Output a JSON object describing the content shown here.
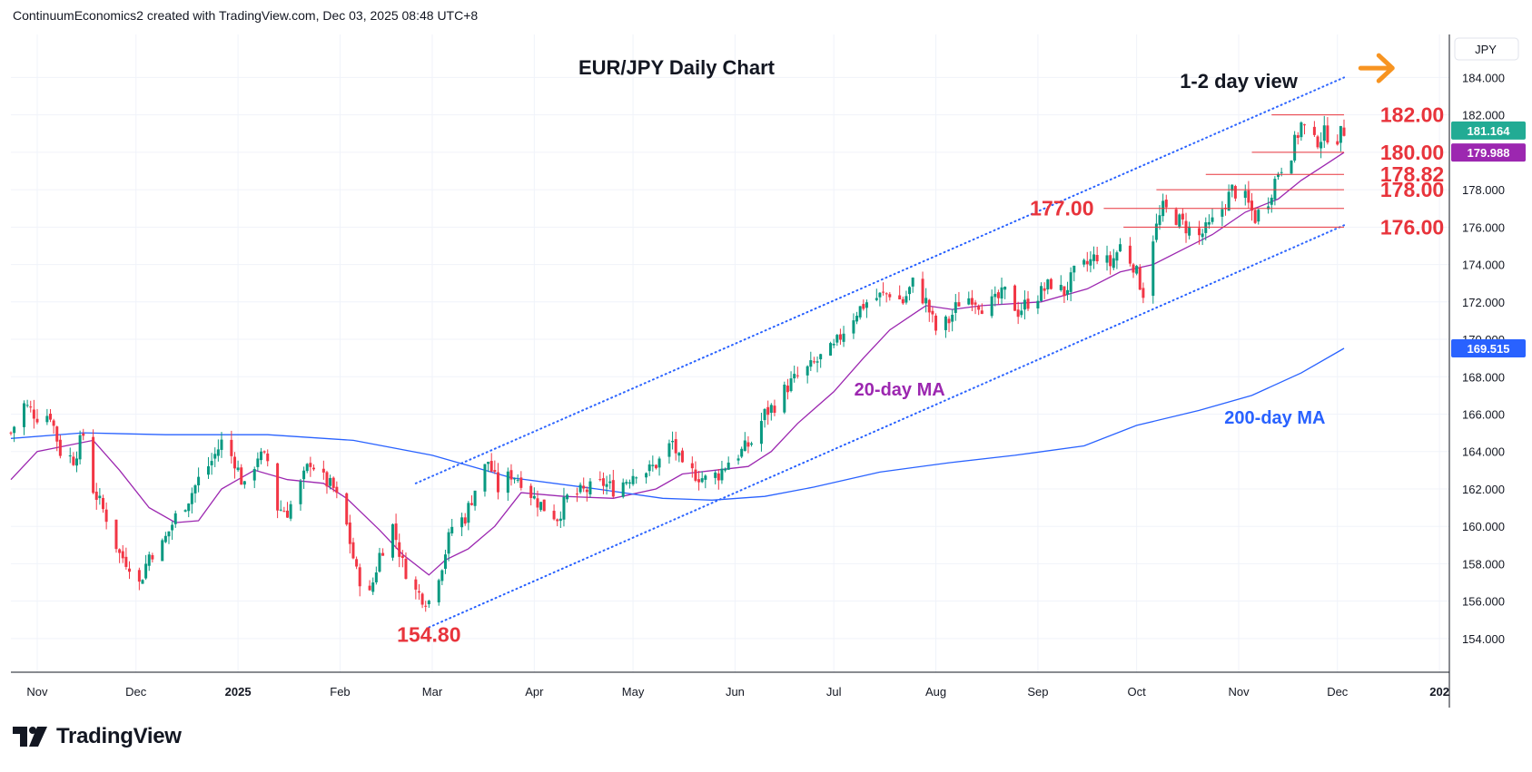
{
  "header": {
    "text": "ContinuumEconomics2 created with TradingView.com, Dec 03, 2025 08:48 UTC+8"
  },
  "branding": {
    "name": "TradingView",
    "icon": "tradingview-logo-icon"
  },
  "chart_data": {
    "type": "candlestick",
    "title": "EUR/JPY Daily Chart",
    "currency_label": "JPY",
    "y_ticks": [
      154,
      156,
      158,
      160,
      162,
      164,
      166,
      168,
      170,
      172,
      174,
      176,
      178,
      180,
      182,
      184
    ],
    "y_tick_labels": [
      "154.000",
      "156.000",
      "158.000",
      "160.000",
      "162.000",
      "164.000",
      "166.000",
      "168.000",
      "170.000",
      "172.000",
      "174.000",
      "176.000",
      "178.000",
      "180.000",
      "182.000",
      "184.000"
    ],
    "ylim": [
      152.2,
      186.3
    ],
    "x_range": [
      "2024-10-24",
      "2026-01-04"
    ],
    "x_ticks": [
      {
        "label": "Nov",
        "date": "2024-11-01",
        "bold": false
      },
      {
        "label": "Dec",
        "date": "2024-12-01",
        "bold": false
      },
      {
        "label": "2025",
        "date": "2025-01-01",
        "bold": true
      },
      {
        "label": "Feb",
        "date": "2025-02-01",
        "bold": false
      },
      {
        "label": "Mar",
        "date": "2025-03-01",
        "bold": false
      },
      {
        "label": "Apr",
        "date": "2025-04-01",
        "bold": false
      },
      {
        "label": "May",
        "date": "2025-05-01",
        "bold": false
      },
      {
        "label": "Jun",
        "date": "2025-06-01",
        "bold": false
      },
      {
        "label": "Jul",
        "date": "2025-07-01",
        "bold": false
      },
      {
        "label": "Aug",
        "date": "2025-08-01",
        "bold": false
      },
      {
        "label": "Sep",
        "date": "2025-09-01",
        "bold": false
      },
      {
        "label": "Oct",
        "date": "2025-10-01",
        "bold": false
      },
      {
        "label": "Nov",
        "date": "2025-11-01",
        "bold": false
      },
      {
        "label": "Dec",
        "date": "2025-12-01",
        "bold": false
      },
      {
        "label": "202",
        "date": "2026-01-01",
        "bold": true
      }
    ],
    "price_path": [
      [
        "2024-10-24",
        165.0
      ],
      [
        "2024-10-28",
        166.5
      ],
      [
        "2024-11-01",
        165.9
      ],
      [
        "2024-11-05",
        166.0
      ],
      [
        "2024-11-08",
        164.0
      ],
      [
        "2024-11-12",
        163.6
      ],
      [
        "2024-11-15",
        164.9
      ],
      [
        "2024-11-18",
        162.0
      ],
      [
        "2024-11-22",
        160.5
      ],
      [
        "2024-11-26",
        158.5
      ],
      [
        "2024-11-29",
        158.0
      ],
      [
        "2024-12-02",
        156.9
      ],
      [
        "2024-12-05",
        158.5
      ],
      [
        "2024-12-09",
        159.0
      ],
      [
        "2024-12-13",
        160.5
      ],
      [
        "2024-12-17",
        161.5
      ],
      [
        "2024-12-20",
        162.5
      ],
      [
        "2024-12-24",
        163.5
      ],
      [
        "2024-12-27",
        164.5
      ],
      [
        "2024-12-31",
        163.5
      ],
      [
        "2025-01-03",
        162.0
      ],
      [
        "2025-01-07",
        163.8
      ],
      [
        "2025-01-10",
        163.5
      ],
      [
        "2025-01-13",
        161.0
      ],
      [
        "2025-01-16",
        160.8
      ],
      [
        "2025-01-20",
        162.2
      ],
      [
        "2025-01-23",
        163.5
      ],
      [
        "2025-01-27",
        162.5
      ],
      [
        "2025-01-30",
        162.0
      ],
      [
        "2025-02-03",
        160.0
      ],
      [
        "2025-02-06",
        157.5
      ],
      [
        "2025-02-10",
        156.3
      ],
      [
        "2025-02-13",
        158.5
      ],
      [
        "2025-02-17",
        160.0
      ],
      [
        "2025-02-20",
        158.0
      ],
      [
        "2025-02-24",
        156.5
      ],
      [
        "2025-02-28",
        156.0
      ],
      [
        "2025-03-04",
        158.0
      ],
      [
        "2025-03-07",
        160.0
      ],
      [
        "2025-03-11",
        160.5
      ],
      [
        "2025-03-14",
        162.0
      ],
      [
        "2025-03-18",
        163.5
      ],
      [
        "2025-03-21",
        162.0
      ],
      [
        "2025-03-25",
        162.8
      ],
      [
        "2025-03-28",
        162.5
      ],
      [
        "2025-04-01",
        161.5
      ],
      [
        "2025-04-04",
        161.0
      ],
      [
        "2025-04-08",
        160.5
      ],
      [
        "2025-04-11",
        161.5
      ],
      [
        "2025-04-15",
        161.8
      ],
      [
        "2025-04-18",
        162.0
      ],
      [
        "2025-04-22",
        162.3
      ],
      [
        "2025-04-25",
        162.0
      ],
      [
        "2025-04-29",
        162.5
      ],
      [
        "2025-05-02",
        163.0
      ],
      [
        "2025-05-06",
        163.0
      ],
      [
        "2025-05-09",
        163.5
      ],
      [
        "2025-05-13",
        164.5
      ],
      [
        "2025-05-16",
        163.0
      ],
      [
        "2025-05-20",
        162.8
      ],
      [
        "2025-05-23",
        162.5
      ],
      [
        "2025-05-27",
        162.8
      ],
      [
        "2025-05-30",
        163.5
      ],
      [
        "2025-06-03",
        164.0
      ],
      [
        "2025-06-06",
        164.5
      ],
      [
        "2025-06-10",
        166.0
      ],
      [
        "2025-06-13",
        166.5
      ],
      [
        "2025-06-17",
        167.5
      ],
      [
        "2025-06-20",
        168.0
      ],
      [
        "2025-06-24",
        168.5
      ],
      [
        "2025-06-27",
        169.0
      ],
      [
        "2025-07-01",
        169.5
      ],
      [
        "2025-07-04",
        170.5
      ],
      [
        "2025-07-08",
        171.5
      ],
      [
        "2025-07-11",
        172.0
      ],
      [
        "2025-07-15",
        172.3
      ],
      [
        "2025-07-18",
        172.5
      ],
      [
        "2025-07-22",
        172.0
      ],
      [
        "2025-07-25",
        173.0
      ],
      [
        "2025-07-29",
        172.0
      ],
      [
        "2025-08-01",
        170.5
      ],
      [
        "2025-08-05",
        171.0
      ],
      [
        "2025-08-08",
        172.0
      ],
      [
        "2025-08-12",
        172.3
      ],
      [
        "2025-08-15",
        171.8
      ],
      [
        "2025-08-19",
        172.0
      ],
      [
        "2025-08-22",
        172.5
      ],
      [
        "2025-08-26",
        171.5
      ],
      [
        "2025-08-29",
        172.0
      ],
      [
        "2025-09-02",
        172.5
      ],
      [
        "2025-09-05",
        173.0
      ],
      [
        "2025-09-09",
        172.5
      ],
      [
        "2025-09-12",
        173.5
      ],
      [
        "2025-09-16",
        174.0
      ],
      [
        "2025-09-19",
        174.5
      ],
      [
        "2025-09-23",
        174.0
      ],
      [
        "2025-09-26",
        175.0
      ],
      [
        "2025-09-30",
        174.0
      ],
      [
        "2025-10-03",
        172.5
      ],
      [
        "2025-10-06",
        175.5
      ],
      [
        "2025-10-09",
        177.0
      ],
      [
        "2025-10-13",
        176.5
      ],
      [
        "2025-10-16",
        176.0
      ],
      [
        "2025-10-20",
        175.5
      ],
      [
        "2025-10-23",
        176.0
      ],
      [
        "2025-10-27",
        177.0
      ],
      [
        "2025-10-30",
        178.0
      ],
      [
        "2025-11-03",
        177.5
      ],
      [
        "2025-11-06",
        176.5
      ],
      [
        "2025-11-10",
        177.5
      ],
      [
        "2025-11-13",
        179.0
      ],
      [
        "2025-11-17",
        180.0
      ],
      [
        "2025-11-20",
        181.5
      ],
      [
        "2025-11-24",
        180.5
      ],
      [
        "2025-11-27",
        181.0
      ],
      [
        "2025-12-01",
        180.8
      ],
      [
        "2025-12-03",
        181.164
      ]
    ],
    "series": [
      {
        "name": "20-day MA",
        "color": "#9c27b0",
        "label_date": "2025-07-21",
        "label_value": 167.0,
        "points": [
          [
            "2024-10-24",
            162.5
          ],
          [
            "2024-11-01",
            164.0
          ],
          [
            "2024-11-18",
            164.6
          ],
          [
            "2024-11-26",
            163.0
          ],
          [
            "2024-12-05",
            161.0
          ],
          [
            "2024-12-13",
            160.2
          ],
          [
            "2024-12-20",
            160.3
          ],
          [
            "2024-12-27",
            162.0
          ],
          [
            "2025-01-06",
            163.0
          ],
          [
            "2025-01-16",
            162.5
          ],
          [
            "2025-01-27",
            162.3
          ],
          [
            "2025-02-03",
            161.5
          ],
          [
            "2025-02-13",
            159.8
          ],
          [
            "2025-02-20",
            158.5
          ],
          [
            "2025-02-28",
            157.4
          ],
          [
            "2025-03-05",
            158.2
          ],
          [
            "2025-03-12",
            158.8
          ],
          [
            "2025-03-20",
            160.0
          ],
          [
            "2025-03-28",
            161.8
          ],
          [
            "2025-04-10",
            161.6
          ],
          [
            "2025-04-25",
            161.5
          ],
          [
            "2025-05-08",
            162.0
          ],
          [
            "2025-05-16",
            162.8
          ],
          [
            "2025-05-26",
            163.0
          ],
          [
            "2025-06-05",
            163.2
          ],
          [
            "2025-06-12",
            164.0
          ],
          [
            "2025-06-20",
            165.5
          ],
          [
            "2025-07-01",
            167.2
          ],
          [
            "2025-07-10",
            169.0
          ],
          [
            "2025-07-18",
            170.5
          ],
          [
            "2025-07-29",
            171.8
          ],
          [
            "2025-08-06",
            171.6
          ],
          [
            "2025-08-15",
            171.8
          ],
          [
            "2025-09-02",
            172.0
          ],
          [
            "2025-09-16",
            172.7
          ],
          [
            "2025-09-26",
            173.6
          ],
          [
            "2025-10-06",
            174.0
          ],
          [
            "2025-10-15",
            174.8
          ],
          [
            "2025-10-24",
            175.6
          ],
          [
            "2025-11-03",
            176.8
          ],
          [
            "2025-11-13",
            177.5
          ],
          [
            "2025-11-20",
            178.5
          ],
          [
            "2025-11-27",
            179.3
          ],
          [
            "2025-12-03",
            179.988
          ]
        ]
      },
      {
        "name": "200-day MA",
        "color": "#2962ff",
        "label_date": "2025-11-12",
        "label_value": 165.5,
        "points": [
          [
            "2024-10-24",
            164.7
          ],
          [
            "2024-11-15",
            165.0
          ],
          [
            "2024-12-10",
            164.9
          ],
          [
            "2025-01-10",
            164.9
          ],
          [
            "2025-02-05",
            164.6
          ],
          [
            "2025-03-01",
            163.8
          ],
          [
            "2025-03-25",
            162.6
          ],
          [
            "2025-04-20",
            162.0
          ],
          [
            "2025-05-10",
            161.5
          ],
          [
            "2025-05-25",
            161.4
          ],
          [
            "2025-06-10",
            161.6
          ],
          [
            "2025-06-25",
            162.1
          ],
          [
            "2025-07-15",
            162.9
          ],
          [
            "2025-08-05",
            163.4
          ],
          [
            "2025-08-25",
            163.8
          ],
          [
            "2025-09-15",
            164.3
          ],
          [
            "2025-10-01",
            165.4
          ],
          [
            "2025-10-20",
            166.2
          ],
          [
            "2025-11-05",
            167.0
          ],
          [
            "2025-11-20",
            168.2
          ],
          [
            "2025-12-03",
            169.515
          ]
        ]
      }
    ],
    "channel": {
      "upper": [
        [
          "2025-02-24",
          162.3
        ],
        [
          "2025-12-03",
          184.0
        ]
      ],
      "lower": [
        [
          "2025-02-28",
          154.6
        ],
        [
          "2025-12-03",
          176.1
        ]
      ]
    },
    "levels": [
      {
        "label": "182.00",
        "value": 182.0,
        "from": "2025-11-11",
        "to": "2025-12-03",
        "label_side": "right",
        "label_date": "2025-12-14"
      },
      {
        "label": "180.00",
        "value": 180.0,
        "from": "2025-11-05",
        "to": "2025-12-03",
        "label_side": "right",
        "label_date": "2025-12-14"
      },
      {
        "label": "178.82",
        "value": 178.82,
        "from": "2025-10-22",
        "to": "2025-12-03",
        "label_side": "right",
        "label_date": "2025-12-14"
      },
      {
        "label": "178.00",
        "value": 178.0,
        "from": "2025-10-07",
        "to": "2025-12-03",
        "label_side": "right",
        "label_date": "2025-12-14"
      },
      {
        "label": "177.00",
        "value": 177.0,
        "from": "2025-09-21",
        "to": "2025-12-03",
        "label_side": "left",
        "label_date": "2025-09-18"
      },
      {
        "label": "176.00",
        "value": 176.0,
        "from": "2025-09-27",
        "to": "2025-12-03",
        "label_side": "right",
        "label_date": "2025-12-14"
      }
    ],
    "annotations": [
      {
        "text": "154.80",
        "date": "2025-02-28",
        "value": 154.8,
        "color": "#e8343c"
      },
      {
        "text": "1-2 day view",
        "date": "2025-11-01",
        "value": 184.4,
        "color": "#131722"
      }
    ],
    "arrow": {
      "color": "#f79421",
      "date": "2025-12-13",
      "value": 184.5
    },
    "price_badges": [
      {
        "label": "181.164",
        "value": 181.164,
        "color": "#22ab94"
      },
      {
        "label": "179.988",
        "value": 179.988,
        "color": "#9c27b0"
      },
      {
        "label": "169.515",
        "value": 169.515,
        "color": "#2962ff"
      }
    ],
    "colors": {
      "up": "#089981",
      "down": "#f23645",
      "level": "#e8343c",
      "grid": "#f0f3fa"
    }
  }
}
